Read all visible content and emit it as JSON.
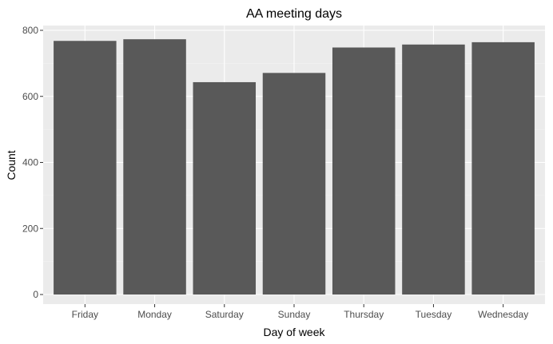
{
  "chart_data": {
    "type": "bar",
    "title": "AA meeting days",
    "xlabel": "Day of week",
    "ylabel": "Count",
    "categories": [
      "Friday",
      "Monday",
      "Saturday",
      "Sunday",
      "Thursday",
      "Tuesday",
      "Wednesday"
    ],
    "values": [
      768,
      773,
      643,
      671,
      748,
      757,
      764
    ],
    "ylim": [
      0,
      820
    ],
    "yticks": [
      0,
      200,
      400,
      600,
      800
    ],
    "grid": true,
    "colors": {
      "bar": "#595959",
      "panel": "#ebebeb",
      "grid_major": "#ffffff",
      "grid_minor": "#f5f5f5"
    }
  }
}
